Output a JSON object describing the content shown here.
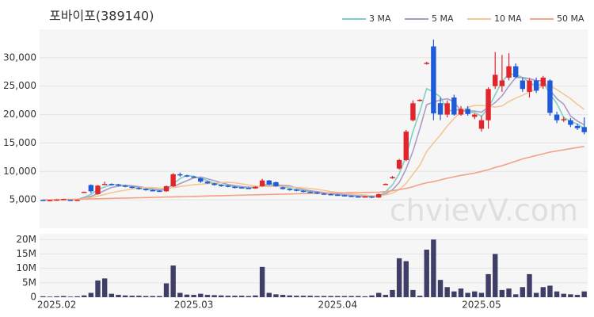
{
  "chart_data": [
    {
      "type": "candlestick",
      "title": "포바이포(389140)",
      "watermark": "chvievV.com",
      "up_color": "#e0262c",
      "down_color": "#1e5bd8",
      "legend": "top-right",
      "grid": true,
      "ylim": [
        0,
        35000
      ],
      "yticks": [
        {
          "value": 5000,
          "label": "5,000"
        },
        {
          "value": 10000,
          "label": "10,000"
        },
        {
          "value": 15000,
          "label": "15,000"
        },
        {
          "value": 20000,
          "label": "20,000"
        },
        {
          "value": 25000,
          "label": "25,000"
        },
        {
          "value": 30000,
          "label": "30,000"
        }
      ],
      "open": [
        5000,
        4900,
        4950,
        5050,
        5000,
        4950,
        6300,
        7600,
        6000,
        7700,
        7800,
        7700,
        7500,
        7300,
        7100,
        6900,
        6700,
        6600,
        6500,
        7400,
        9500,
        9300,
        9100,
        8800,
        8200,
        7900,
        7600,
        7500,
        7300,
        7200,
        7100,
        7000,
        7400,
        8400,
        8100,
        7200,
        6900,
        6800,
        6600,
        6400,
        6300,
        6100,
        6000,
        5900,
        5800,
        5700,
        5600,
        5500,
        5600,
        5400,
        7700,
        8800,
        10500,
        12000,
        19000,
        22400,
        28900,
        32000,
        22000,
        20000,
        23000,
        20000,
        21000,
        19600,
        17500,
        19000,
        25000,
        25000,
        26500,
        28500,
        26000,
        24000,
        26000,
        25000,
        26000,
        20000,
        19000,
        19000,
        18000,
        17800
      ],
      "high": [
        5050,
        5000,
        5100,
        5200,
        5050,
        5050,
        6450,
        7700,
        7600,
        8200,
        7900,
        7800,
        7600,
        7400,
        7200,
        7000,
        6800,
        6700,
        7500,
        9700,
        9800,
        9400,
        9200,
        8900,
        8300,
        8000,
        7700,
        7600,
        7400,
        7300,
        7200,
        7400,
        8700,
        8500,
        8200,
        7300,
        7000,
        6900,
        6700,
        6500,
        6400,
        6200,
        6100,
        6000,
        5900,
        5800,
        5700,
        5700,
        5650,
        6100,
        7900,
        9200,
        12200,
        17300,
        22500,
        22700,
        29300,
        33200,
        23000,
        22500,
        23500,
        21500,
        21500,
        20200,
        19800,
        24800,
        31000,
        30500,
        30800,
        29000,
        26500,
        26400,
        26500,
        26800,
        26200,
        20500,
        19600,
        19400,
        18400,
        19500
      ],
      "low": [
        4850,
        4850,
        4900,
        5000,
        4900,
        4900,
        6250,
        6200,
        5900,
        7600,
        7500,
        7400,
        7200,
        7000,
        6800,
        6600,
        6500,
        6400,
        6400,
        7300,
        9100,
        9000,
        8900,
        8000,
        7800,
        7500,
        7300,
        7200,
        7000,
        7000,
        6900,
        6950,
        7300,
        7600,
        7300,
        6800,
        6600,
        6500,
        6300,
        6200,
        6000,
        5900,
        5800,
        5700,
        5600,
        5500,
        5400,
        5400,
        5300,
        5350,
        7600,
        8700,
        10300,
        11800,
        18800,
        22300,
        28800,
        19000,
        19000,
        19500,
        19800,
        19800,
        19800,
        19200,
        17000,
        17500,
        24500,
        24000,
        26000,
        26400,
        24000,
        23000,
        23800,
        24500,
        19800,
        18500,
        18700,
        17800,
        17300,
        16500
      ],
      "close": [
        4900,
        4950,
        5050,
        5150,
        4950,
        5000,
        6400,
        6500,
        7500,
        7800,
        7700,
        7500,
        7300,
        7100,
        6900,
        6700,
        6600,
        6500,
        7400,
        9500,
        9300,
        9100,
        9000,
        8200,
        7900,
        7600,
        7500,
        7300,
        7200,
        7100,
        7000,
        7300,
        8400,
        7700,
        7400,
        6900,
        6800,
        6600,
        6400,
        6300,
        6100,
        6000,
        5900,
        5800,
        5700,
        5600,
        5500,
        5600,
        5400,
        6000,
        7800,
        9000,
        12000,
        17000,
        22000,
        22600,
        29100,
        20200,
        20000,
        22000,
        20000,
        21000,
        20100,
        20000,
        19000,
        24500,
        27000,
        26000,
        28500,
        26600,
        24500,
        26000,
        24200,
        26500,
        20300,
        19000,
        19200,
        18200,
        17600,
        16900
      ],
      "series": [
        {
          "name": "3 MA",
          "color": "#7fd0c4",
          "values": [
            4950,
            4950,
            4970,
            5050,
            5050,
            5030,
            5450,
            5970,
            6800,
            7270,
            7670,
            7670,
            7500,
            7300,
            7100,
            6900,
            6730,
            6600,
            6830,
            7800,
            8730,
            9300,
            9130,
            8770,
            8370,
            7900,
            7670,
            7470,
            7330,
            7200,
            7100,
            7130,
            7570,
            7800,
            7830,
            7330,
            7030,
            6770,
            6600,
            6430,
            6270,
            6130,
            6000,
            5900,
            5800,
            5700,
            5600,
            5570,
            5500,
            5670,
            6400,
            7600,
            9600,
            12670,
            17000,
            20530,
            24570,
            23970,
            23100,
            20730,
            20670,
            21000,
            20370,
            20370,
            19700,
            21170,
            23500,
            25830,
            27170,
            27030,
            26530,
            25700,
            24900,
            25570,
            23670,
            21930,
            19500,
            18800,
            18330,
            17570
          ]
        },
        {
          "name": "5 MA",
          "color": "#ab9cc6",
          "values": [
            4950,
            4950,
            4970,
            5020,
            5000,
            5020,
            5310,
            5620,
            6100,
            6640,
            7180,
            7400,
            7560,
            7480,
            7300,
            7100,
            6920,
            6760,
            6840,
            7300,
            7860,
            8360,
            8860,
            9020,
            8700,
            8360,
            8040,
            7700,
            7500,
            7340,
            7220,
            7180,
            7400,
            7500,
            7560,
            7540,
            7440,
            7080,
            6820,
            6600,
            6440,
            6280,
            6140,
            6020,
            5900,
            5800,
            5700,
            5640,
            5560,
            5620,
            6060,
            6760,
            8040,
            10440,
            13560,
            17520,
            21740,
            22180,
            22580,
            22780,
            22260,
            20640,
            20620,
            20620,
            20420,
            21320,
            22120,
            23300,
            25000,
            26520,
            26520,
            26320,
            25960,
            25960,
            24320,
            22800,
            21840,
            19740,
            18860,
            18180
          ]
        },
        {
          "name": "10 MA",
          "color": "#f2c892",
          "values": [
            4950,
            4960,
            4970,
            4990,
            5000,
            5000,
            5200,
            5400,
            5650,
            5950,
            6250,
            6500,
            6700,
            6900,
            7050,
            7150,
            7150,
            7050,
            7050,
            7200,
            7350,
            7500,
            7650,
            7750,
            7850,
            7950,
            8050,
            8100,
            8000,
            7800,
            7600,
            7400,
            7350,
            7350,
            7350,
            7300,
            7250,
            7200,
            7100,
            7000,
            6850,
            6650,
            6450,
            6300,
            6150,
            6050,
            5950,
            5850,
            5750,
            5700,
            5850,
            6150,
            6800,
            7900,
            9500,
            11100,
            13500,
            15000,
            16400,
            18000,
            19300,
            20500,
            21300,
            21600,
            21600,
            21500,
            21300,
            21500,
            22300,
            22900,
            23400,
            24000,
            24400,
            25100,
            25100,
            24400,
            23600,
            22800,
            21800,
            20900
          ]
        },
        {
          "name": "50 MA",
          "color": "#f2a286",
          "values": [
            5000,
            5020,
            5040,
            5060,
            5080,
            5100,
            5130,
            5160,
            5190,
            5220,
            5250,
            5280,
            5310,
            5340,
            5370,
            5400,
            5430,
            5460,
            5490,
            5520,
            5550,
            5580,
            5610,
            5640,
            5670,
            5700,
            5730,
            5760,
            5790,
            5820,
            5850,
            5880,
            5910,
            5940,
            5970,
            6000,
            6030,
            6060,
            6090,
            6120,
            6150,
            6180,
            6200,
            6220,
            6240,
            6260,
            6280,
            6300,
            6320,
            6350,
            6450,
            6600,
            6800,
            7000,
            7300,
            7700,
            8000,
            8200,
            8500,
            8800,
            9050,
            9300,
            9500,
            9700,
            10000,
            10300,
            10700,
            11000,
            11400,
            11800,
            12200,
            12500,
            12800,
            13100,
            13400,
            13600,
            13800,
            14000,
            14200,
            14400
          ]
        }
      ]
    },
    {
      "type": "bar",
      "color": "#3e3e66",
      "grid": true,
      "ylim": [
        0,
        22000000
      ],
      "yticks": [
        0,
        {
          "value": 5000000,
          "label": "5M"
        },
        {
          "value": 10000000,
          "label": "10M"
        },
        {
          "value": 15000000,
          "label": "15M"
        },
        {
          "value": 20000000,
          "label": "20M"
        }
      ],
      "categories": [
        null,
        null,
        "2025.02",
        null,
        null,
        null,
        null,
        null,
        null,
        null,
        null,
        null,
        null,
        null,
        null,
        null,
        null,
        null,
        null,
        null,
        null,
        null,
        "2025.03",
        null,
        null,
        null,
        null,
        null,
        null,
        null,
        null,
        null,
        null,
        null,
        null,
        null,
        null,
        null,
        null,
        null,
        null,
        null,
        null,
        "2025.04",
        null,
        null,
        null,
        null,
        null,
        null,
        null,
        null,
        null,
        null,
        null,
        null,
        null,
        null,
        null,
        null,
        null,
        null,
        null,
        null,
        "2025.05",
        null,
        null,
        null,
        null,
        null,
        null,
        null,
        null,
        null,
        null,
        null,
        null,
        null,
        null,
        null
      ],
      "values": [
        300000,
        200000,
        300000,
        400000,
        200000,
        300000,
        600000,
        1500000,
        5800000,
        6500000,
        1200000,
        800000,
        600000,
        500000,
        500000,
        400000,
        400000,
        400000,
        4800000,
        11000000,
        1500000,
        900000,
        800000,
        1200000,
        800000,
        700000,
        600000,
        500000,
        500000,
        500000,
        400000,
        600000,
        10500000,
        1500000,
        1000000,
        800000,
        600000,
        500000,
        500000,
        500000,
        400000,
        400000,
        400000,
        400000,
        400000,
        400000,
        400000,
        300000,
        600000,
        1500000,
        800000,
        2500000,
        13500000,
        12500000,
        2500000,
        500000,
        16500000,
        20000000,
        6000000,
        3500000,
        2000000,
        3000000,
        1500000,
        2000000,
        1500000,
        8000000,
        15000000,
        2500000,
        3000000,
        1000000,
        3500000,
        8000000,
        1500000,
        3500000,
        4000000,
        2000000,
        1200000,
        1000000,
        800000,
        2000000
      ]
    }
  ]
}
